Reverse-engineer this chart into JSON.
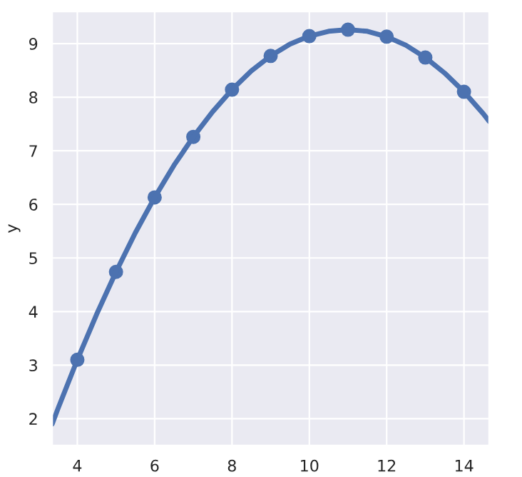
{
  "chart_data": {
    "type": "scatter",
    "ylabel": "y",
    "x": [
      4,
      5,
      6,
      7,
      8,
      9,
      10,
      11,
      12,
      13,
      14
    ],
    "series": [
      {
        "color": "#4c72b0",
        "marker": "circle",
        "values": [
          3.1,
          4.74,
          6.13,
          7.26,
          8.14,
          8.77,
          9.14,
          9.26,
          9.13,
          8.74,
          8.1
        ]
      },
      {
        "type": "line",
        "color": "#4c72b0",
        "marker": "none",
        "x": [
          3.35,
          3.5,
          4,
          4.5,
          5,
          5.5,
          6,
          6.5,
          7,
          7.5,
          8,
          8.5,
          9,
          9.5,
          10,
          10.5,
          11,
          11.5,
          12,
          12.5,
          13,
          13.5,
          14,
          14.5,
          14.65
        ],
        "values": [
          1.9,
          2.19,
          3.1,
          3.95,
          4.74,
          5.47,
          6.13,
          6.73,
          7.26,
          7.73,
          8.14,
          8.49,
          8.77,
          8.99,
          9.14,
          9.23,
          9.26,
          9.23,
          9.13,
          8.97,
          8.74,
          8.45,
          8.1,
          7.69,
          7.55
        ]
      }
    ],
    "xlim": [
      3.35,
      14.65
    ],
    "xticks": [
      4,
      6,
      8,
      10,
      12,
      14
    ],
    "ylim": [
      1.5,
      9.6
    ],
    "yticks": [
      2,
      3,
      4,
      5,
      6,
      7,
      8,
      9
    ],
    "grid": true,
    "legend": false
  }
}
